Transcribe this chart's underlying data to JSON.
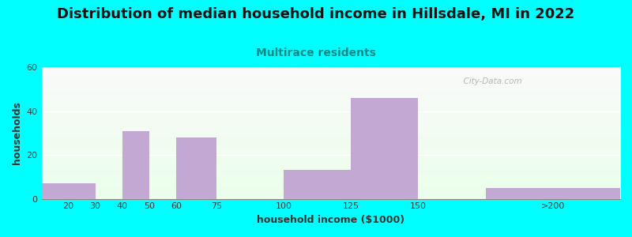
{
  "title": "Distribution of median household income in Hillsdale, MI in 2022",
  "subtitle": "Multirace residents",
  "xlabel": "household income ($1000)",
  "ylabel": "households",
  "background_color": "#00FFFF",
  "bar_color": "#C4A8D4",
  "xtick_labels": [
    "20",
    "30",
    "40",
    "50",
    "60",
    "75",
    "100",
    "125",
    "150",
    ">200"
  ],
  "xtick_positions": [
    20,
    30,
    40,
    50,
    60,
    75,
    100,
    125,
    150,
    200
  ],
  "bar_lefts": [
    10,
    30,
    40,
    60,
    75,
    100,
    125,
    175
  ],
  "bar_rights": [
    30,
    40,
    50,
    75,
    100,
    125,
    150,
    225
  ],
  "bar_heights": [
    7,
    0,
    31,
    28,
    0,
    13,
    46,
    5
  ],
  "xlim": [
    10,
    225
  ],
  "ylim": [
    0,
    60
  ],
  "yticks": [
    0,
    20,
    40,
    60
  ],
  "title_fontsize": 13,
  "subtitle_fontsize": 10,
  "axis_label_fontsize": 9,
  "watermark": "  City-Data.com"
}
